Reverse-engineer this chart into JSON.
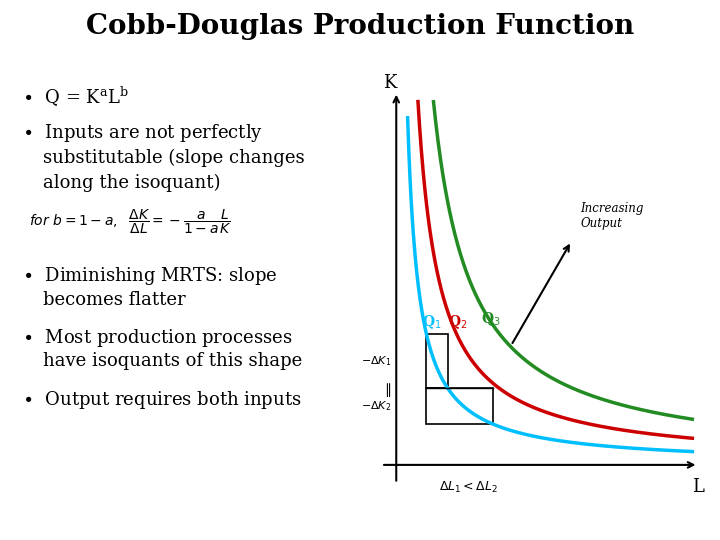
{
  "title": "Cobb-Douglas Production Function",
  "title_fontsize": 20,
  "title_fontweight": "bold",
  "background_color": "#ffffff",
  "isoquant_colors": [
    "#00bfff",
    "#cc0000",
    "#228B22"
  ],
  "isoquant_labels": [
    "Q$_1$",
    "Q$_2$",
    "Q$_3$"
  ],
  "isoquant_constants": [
    3.5,
    7.0,
    12.0
  ],
  "graph_xlim": [
    0,
    10
  ],
  "graph_ylim": [
    0,
    10
  ],
  "xlabel": "L",
  "ylabel": "K",
  "increasing_output_label": "Increasing\nOutput",
  "dK1_label": "$-\\Delta K_1$",
  "dK2_label": "$-\\Delta K_2$",
  "dL_label": "$\\Delta L_1 < \\Delta L_2$",
  "parallel_symbol": "$\\parallel$"
}
